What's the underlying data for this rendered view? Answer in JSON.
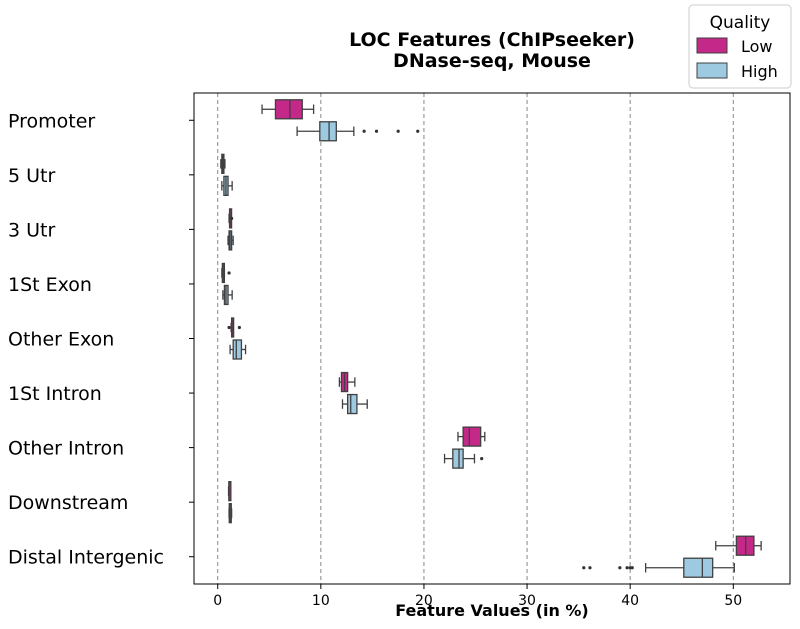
{
  "chart_data": {
    "type": "boxplot",
    "orientation": "horizontal",
    "title_line1": "LOC Features (ChIPseeker)",
    "title_line2": "DNase-seq, Mouse",
    "xlabel": "Feature Values (in %)",
    "ylabel": "",
    "xlim": [
      -2.3,
      55.5
    ],
    "xticks": [
      0,
      10,
      20,
      30,
      40,
      50
    ],
    "grid": "vertical dashed",
    "legend": {
      "title": "Quality",
      "position": "top-right",
      "entries": [
        "Low",
        "High"
      ]
    },
    "colors": {
      "Low": "#c4298a",
      "High": "#9ecae1",
      "line": "#404040",
      "grid": "#888888"
    },
    "categories": [
      "Promoter",
      "5 Utr",
      "3 Utr",
      "1St Exon",
      "Other Exon",
      "1St Intron",
      "Other Intron",
      "Downstream",
      "Distal Intergenic"
    ],
    "series": [
      {
        "name": "Low",
        "boxes": [
          {
            "min": 4.3,
            "q1": 5.6,
            "median": 7.0,
            "q3": 8.2,
            "max": 9.3,
            "outliers": []
          },
          {
            "min": 0.3,
            "q1": 0.4,
            "median": 0.5,
            "q3": 0.6,
            "max": 0.7,
            "outliers": []
          },
          {
            "min": 1.1,
            "q1": 1.15,
            "median": 1.2,
            "q3": 1.25,
            "max": 1.3,
            "outliers": [
              1.35
            ]
          },
          {
            "min": 0.4,
            "q1": 0.45,
            "median": 0.5,
            "q3": 0.6,
            "max": 0.65,
            "outliers": [
              1.1
            ]
          },
          {
            "min": 1.3,
            "q1": 1.35,
            "median": 1.4,
            "q3": 1.45,
            "max": 1.5,
            "outliers": [
              1.1,
              2.1
            ]
          },
          {
            "min": 11.8,
            "q1": 12.0,
            "median": 12.3,
            "q3": 12.6,
            "max": 13.3,
            "outliers": []
          },
          {
            "min": 23.3,
            "q1": 23.8,
            "median": 24.4,
            "q3": 25.5,
            "max": 25.9,
            "outliers": []
          },
          {
            "min": 1.05,
            "q1": 1.08,
            "median": 1.1,
            "q3": 1.15,
            "max": 1.2,
            "outliers": []
          },
          {
            "min": 48.3,
            "q1": 50.3,
            "median": 51.2,
            "q3": 52.0,
            "max": 52.7,
            "outliers": []
          }
        ]
      },
      {
        "name": "High",
        "boxes": [
          {
            "min": 7.7,
            "q1": 9.9,
            "median": 10.8,
            "q3": 11.5,
            "max": 13.2,
            "outliers": [
              14.2,
              15.4,
              17.5,
              19.4
            ]
          },
          {
            "min": 0.4,
            "q1": 0.6,
            "median": 0.8,
            "q3": 1.0,
            "max": 1.4,
            "outliers": []
          },
          {
            "min": 1.0,
            "q1": 1.1,
            "median": 1.2,
            "q3": 1.35,
            "max": 1.5,
            "outliers": []
          },
          {
            "min": 0.5,
            "q1": 0.65,
            "median": 0.8,
            "q3": 1.0,
            "max": 1.4,
            "outliers": []
          },
          {
            "min": 1.2,
            "q1": 1.5,
            "median": 1.8,
            "q3": 2.3,
            "max": 2.7,
            "outliers": []
          },
          {
            "min": 12.1,
            "q1": 12.6,
            "median": 12.9,
            "q3": 13.5,
            "max": 14.5,
            "outliers": []
          },
          {
            "min": 22.0,
            "q1": 22.8,
            "median": 23.4,
            "q3": 23.8,
            "max": 24.9,
            "outliers": [
              25.6
            ]
          },
          {
            "min": 1.1,
            "q1": 1.12,
            "median": 1.2,
            "q3": 1.28,
            "max": 1.35,
            "outliers": []
          },
          {
            "min": 41.5,
            "q1": 45.2,
            "median": 47.0,
            "q3": 48.0,
            "max": 50.1,
            "outliers": [
              35.5,
              36.1,
              39.0,
              39.7,
              40.0,
              40.2
            ]
          }
        ]
      }
    ]
  }
}
